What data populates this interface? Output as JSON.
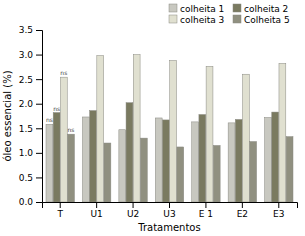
{
  "chart_data": {
    "type": "bar",
    "categories": [
      "T",
      "U1",
      "U2",
      "U3",
      "E 1",
      "E2",
      "E3"
    ],
    "series": [
      {
        "name": "colheita 1",
        "color": "#c8c8c0",
        "values": [
          1.58,
          1.73,
          1.47,
          1.71,
          1.63,
          1.61,
          1.72
        ]
      },
      {
        "name": "colheita 2",
        "color": "#7a7a60",
        "values": [
          1.82,
          1.86,
          2.02,
          1.67,
          1.78,
          1.68,
          1.83
        ]
      },
      {
        "name": "colheita 3",
        "color": "#e0e0d0",
        "values": [
          2.54,
          2.98,
          3.0,
          2.88,
          2.76,
          2.6,
          2.82
        ]
      },
      {
        "name": "Colheita 5",
        "color": "#909080",
        "values": [
          1.38,
          1.2,
          1.3,
          1.12,
          1.15,
          1.23,
          1.33
        ]
      }
    ],
    "xlabel": "Tratamentos",
    "ylabel": "óleo essencial (%)",
    "ylim": [
      0,
      3.5
    ],
    "yticks": [
      {
        "value": 0,
        "label": "0.0"
      },
      0.5,
      {
        "value": 1.0,
        "label": "1.0"
      },
      1.5,
      {
        "value": 2.0,
        "label": "2.0"
      },
      2.5,
      {
        "value": 3.0,
        "label": "3.0"
      },
      3.5
    ],
    "legend": "upper right",
    "grid": false,
    "annotations": [
      {
        "text": "ns",
        "category": "T",
        "series": "colheita 1"
      },
      {
        "text": "ns",
        "category": "T",
        "series": "colheita 2"
      },
      {
        "text": "ns",
        "category": "T",
        "series": "colheita 3"
      },
      {
        "text": "ns",
        "category": "T",
        "series": "Colheita 5"
      }
    ]
  }
}
